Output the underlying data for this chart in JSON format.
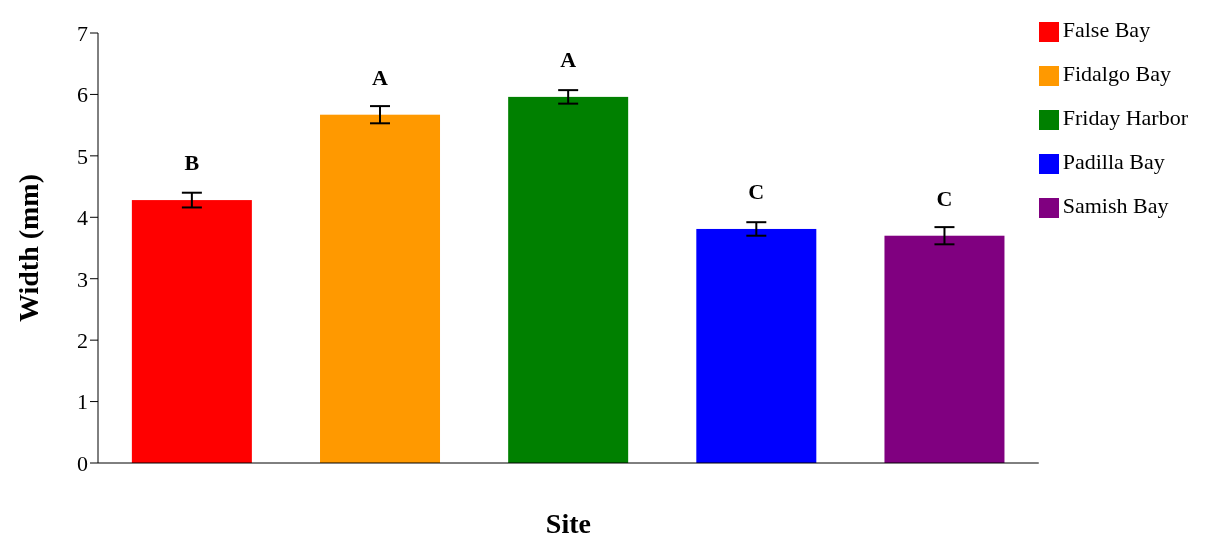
{
  "chart_data": {
    "type": "bar",
    "xlabel": "Site",
    "ylabel": "Width (mm)",
    "categories": [
      null,
      null,
      null,
      null,
      null
    ],
    "stacked": true,
    "series": [
      {
        "name": "False Bay",
        "color": "#ff0000",
        "values": [
          4.28,
          null,
          null,
          null,
          null
        ],
        "errors": [
          0.12,
          null,
          null,
          null,
          null
        ],
        "value_labels": [
          "B",
          null,
          null,
          null,
          null
        ]
      },
      {
        "name": "Fidalgo Bay",
        "color": "#ff9900",
        "values": [
          null,
          5.67,
          null,
          null,
          null
        ],
        "errors": [
          null,
          0.14,
          null,
          null,
          null
        ],
        "value_labels": [
          null,
          "A",
          null,
          null,
          null
        ]
      },
      {
        "name": "Friday Harbor",
        "color": "#008000",
        "values": [
          null,
          null,
          5.96,
          null,
          null
        ],
        "errors": [
          null,
          null,
          0.11,
          null,
          null
        ],
        "value_labels": [
          null,
          null,
          "A",
          null,
          null
        ]
      },
      {
        "name": "Padilla Bay",
        "color": "#0000ff",
        "values": [
          null,
          null,
          null,
          3.81,
          null
        ],
        "errors": [
          null,
          null,
          null,
          0.11,
          null
        ],
        "value_labels": [
          null,
          null,
          null,
          "C",
          null
        ]
      },
      {
        "name": "Samish Bay",
        "color": "#800080",
        "values": [
          null,
          null,
          null,
          null,
          3.7
        ],
        "errors": [
          null,
          null,
          null,
          null,
          0.14
        ],
        "value_labels": [
          null,
          null,
          null,
          null,
          "C"
        ]
      }
    ],
    "ylim": [
      0,
      7
    ],
    "yticks": [
      0,
      1,
      2,
      3,
      4,
      5,
      6,
      7
    ],
    "grid": false,
    "legend": "top right"
  }
}
